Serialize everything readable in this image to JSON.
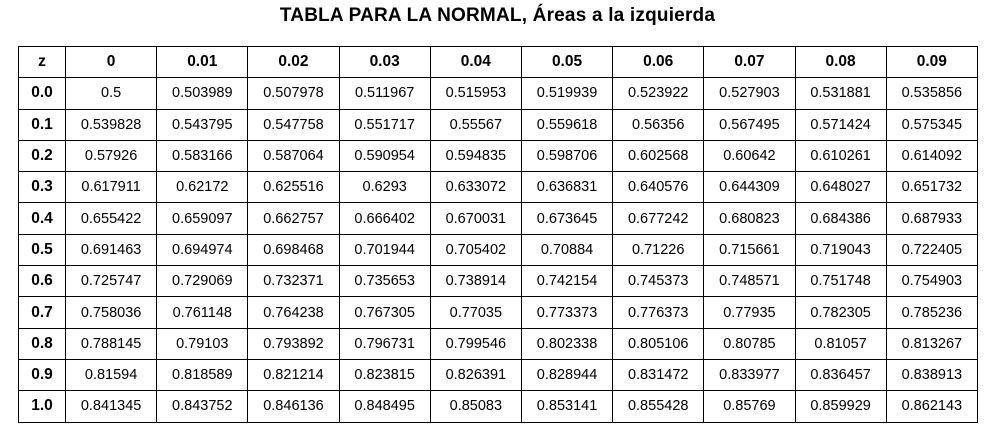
{
  "title": "TABLA PARA LA NORMAL,  Áreas a la izquierda",
  "table": {
    "headers": [
      "z",
      "0",
      "0.01",
      "0.02",
      "0.03",
      "0.04",
      "0.05",
      "0.06",
      "0.07",
      "0.08",
      "0.09"
    ],
    "rows": [
      [
        "0.0",
        "0.5",
        "0.503989",
        "0.507978",
        "0.511967",
        "0.515953",
        "0.519939",
        "0.523922",
        "0.527903",
        "0.531881",
        "0.535856"
      ],
      [
        "0.1",
        "0.539828",
        "0.543795",
        "0.547758",
        "0.551717",
        "0.55567",
        "0.559618",
        "0.56356",
        "0.567495",
        "0.571424",
        "0.575345"
      ],
      [
        "0.2",
        "0.57926",
        "0.583166",
        "0.587064",
        "0.590954",
        "0.594835",
        "0.598706",
        "0.602568",
        "0.60642",
        "0.610261",
        "0.614092"
      ],
      [
        "0.3",
        "0.617911",
        "0.62172",
        "0.625516",
        "0.6293",
        "0.633072",
        "0.636831",
        "0.640576",
        "0.644309",
        "0.648027",
        "0.651732"
      ],
      [
        "0.4",
        "0.655422",
        "0.659097",
        "0.662757",
        "0.666402",
        "0.670031",
        "0.673645",
        "0.677242",
        "0.680823",
        "0.684386",
        "0.687933"
      ],
      [
        "0.5",
        "0.691463",
        "0.694974",
        "0.698468",
        "0.701944",
        "0.705402",
        "0.70884",
        "0.71226",
        "0.715661",
        "0.719043",
        "0.722405"
      ],
      [
        "0.6",
        "0.725747",
        "0.729069",
        "0.732371",
        "0.735653",
        "0.738914",
        "0.742154",
        "0.745373",
        "0.748571",
        "0.751748",
        "0.754903"
      ],
      [
        "0.7",
        "0.758036",
        "0.761148",
        "0.764238",
        "0.767305",
        "0.77035",
        "0.773373",
        "0.776373",
        "0.77935",
        "0.782305",
        "0.785236"
      ],
      [
        "0.8",
        "0.788145",
        "0.79103",
        "0.793892",
        "0.796731",
        "0.799546",
        "0.802338",
        "0.805106",
        "0.80785",
        "0.81057",
        "0.813267"
      ],
      [
        "0.9",
        "0.81594",
        "0.818589",
        "0.821214",
        "0.823815",
        "0.826391",
        "0.828944",
        "0.831472",
        "0.833977",
        "0.836457",
        "0.838913"
      ],
      [
        "1.0",
        "0.841345",
        "0.843752",
        "0.846136",
        "0.848495",
        "0.85083",
        "0.853141",
        "0.855428",
        "0.85769",
        "0.859929",
        "0.862143"
      ]
    ]
  }
}
